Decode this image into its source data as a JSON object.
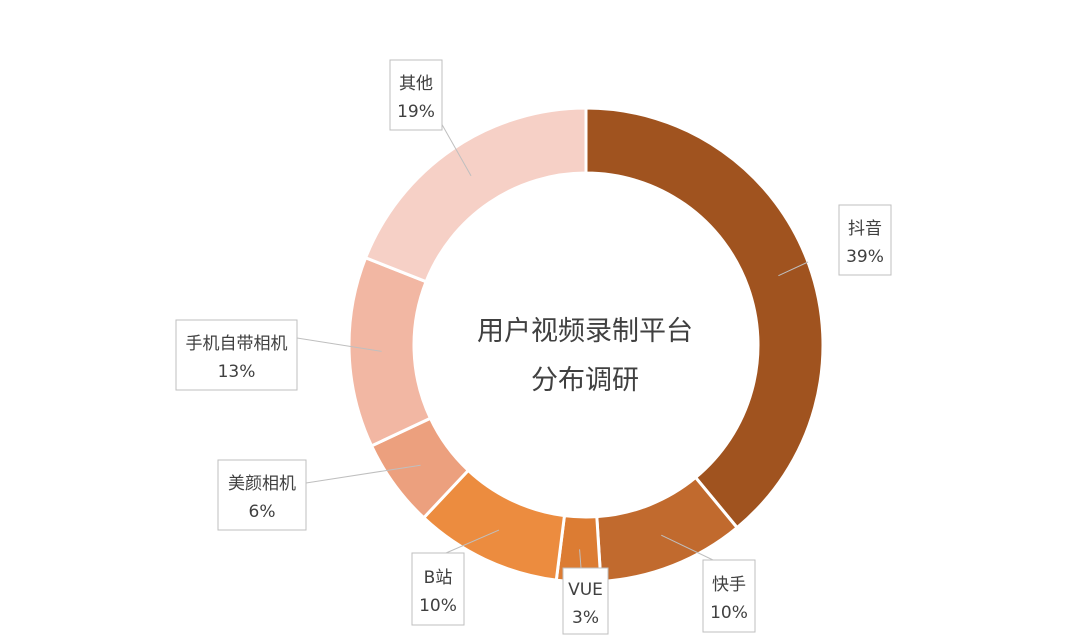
{
  "chart_data": {
    "type": "pie",
    "variant": "donut",
    "center_title_lines": [
      "用户视频录制平台",
      "分布调研"
    ],
    "slices": [
      {
        "name": "抖音",
        "value": 39,
        "label": "39%",
        "color": "#a0531f"
      },
      {
        "name": "快手",
        "value": 10,
        "label": "10%",
        "color": "#c16a2e"
      },
      {
        "name": "VUE",
        "value": 3,
        "label": "3%",
        "color": "#dc7c33"
      },
      {
        "name": "B站",
        "value": 10,
        "label": "10%",
        "color": "#ec8c3f"
      },
      {
        "name": "美颜相机",
        "value": 6,
        "label": "6%",
        "color": "#eca07e"
      },
      {
        "name": "手机自带相机",
        "value": 13,
        "label": "13%",
        "color": "#f2b7a3"
      },
      {
        "name": "其他",
        "value": 19,
        "label": "19%",
        "color": "#f6d0c6"
      }
    ]
  }
}
